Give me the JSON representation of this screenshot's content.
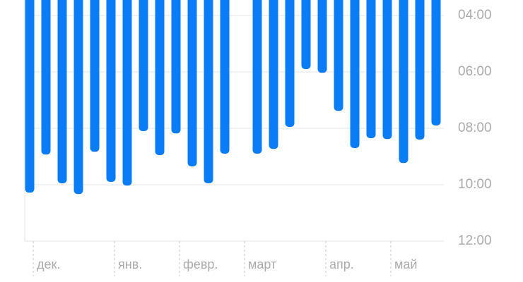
{
  "chart_data": {
    "type": "bar",
    "categories": [
      "дек.",
      null,
      null,
      null,
      null,
      "янв.",
      null,
      null,
      null,
      "февр.",
      null,
      null,
      null,
      "март",
      null,
      null,
      null,
      null,
      "апр.",
      null,
      null,
      null,
      "май",
      null,
      null,
      null
    ],
    "values": [
      10.28,
      8.93,
      9.95,
      10.33,
      8.83,
      9.9,
      10.03,
      8.1,
      8.95,
      8.18,
      9.35,
      9.95,
      8.9,
      null,
      8.9,
      8.73,
      7.95,
      5.9,
      6.03,
      7.38,
      8.7,
      8.35,
      8.38,
      9.23,
      8.4,
      7.9
    ],
    "color": "#0a7cf5",
    "ylim": [
      3.45,
      12
    ],
    "y_inverted": true,
    "yticks": [
      {
        "value": 4,
        "label": "04:00"
      },
      {
        "value": 6,
        "label": "06:00"
      },
      {
        "value": 8,
        "label": "08:00"
      },
      {
        "value": 10,
        "label": "10:00"
      },
      {
        "value": 12,
        "label": "12:00"
      }
    ],
    "grid": true
  }
}
